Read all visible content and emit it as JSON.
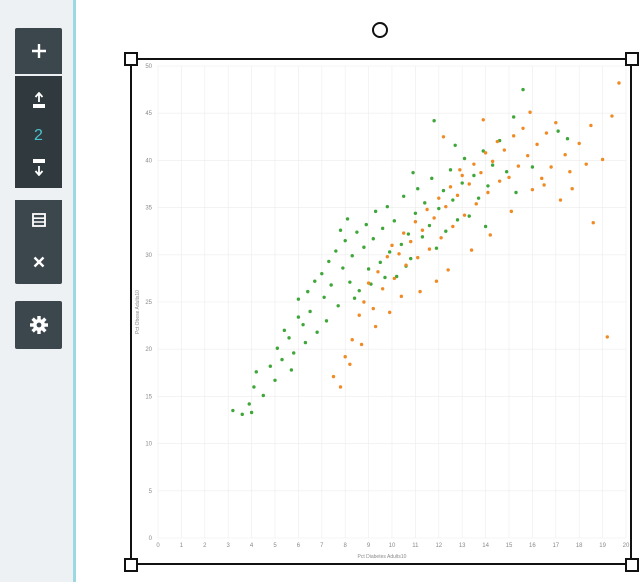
{
  "toolbar": {
    "add_icon": "plus-icon",
    "move_up_icon": "layer-up-icon",
    "layer_count": "2",
    "move_down_icon": "layer-down-icon",
    "stack_icon": "stack-icon",
    "remove_icon": "close-icon",
    "settings_icon": "gear-icon",
    "bg_color": "#3c474d",
    "count_color": "#4cc4cf"
  },
  "chart_data": {
    "type": "scatter",
    "xlabel": "Pct Diabetes Adults10",
    "ylabel": "Pct Obese Adults10",
    "xlim": [
      0,
      20
    ],
    "ylim": [
      0,
      50
    ],
    "xticks": [
      "0",
      "1",
      "2",
      "3",
      "4",
      "5",
      "6",
      "7",
      "8",
      "9",
      "10",
      "11",
      "12",
      "13",
      "14",
      "15",
      "16",
      "17",
      "18",
      "19",
      "20"
    ],
    "yticks": [
      "0",
      "5",
      "10",
      "15",
      "20",
      "25",
      "30",
      "35",
      "40",
      "45",
      "50"
    ],
    "grid": true,
    "series": [
      {
        "color": "#3fa63a",
        "points": [
          [
            3.2,
            13.5
          ],
          [
            3.6,
            13.1
          ],
          [
            4.0,
            13.3
          ],
          [
            3.9,
            14.2
          ],
          [
            4.1,
            16.0
          ],
          [
            4.2,
            17.6
          ],
          [
            4.5,
            15.1
          ],
          [
            4.8,
            18.2
          ],
          [
            5.0,
            16.7
          ],
          [
            5.1,
            20.1
          ],
          [
            5.3,
            18.9
          ],
          [
            5.4,
            22.0
          ],
          [
            5.6,
            21.2
          ],
          [
            5.8,
            19.6
          ],
          [
            6.0,
            23.4
          ],
          [
            6.0,
            25.3
          ],
          [
            6.2,
            22.6
          ],
          [
            6.4,
            26.1
          ],
          [
            6.5,
            24.0
          ],
          [
            6.7,
            27.2
          ],
          [
            6.8,
            21.8
          ],
          [
            7.0,
            28.0
          ],
          [
            7.1,
            25.5
          ],
          [
            7.3,
            29.3
          ],
          [
            7.4,
            26.8
          ],
          [
            7.6,
            30.4
          ],
          [
            7.7,
            24.6
          ],
          [
            7.9,
            28.6
          ],
          [
            8.0,
            31.5
          ],
          [
            8.2,
            27.1
          ],
          [
            8.3,
            29.9
          ],
          [
            8.5,
            32.4
          ],
          [
            8.6,
            26.2
          ],
          [
            8.8,
            30.8
          ],
          [
            8.9,
            33.2
          ],
          [
            9.0,
            28.5
          ],
          [
            9.2,
            31.7
          ],
          [
            9.3,
            34.6
          ],
          [
            9.5,
            29.2
          ],
          [
            9.6,
            32.8
          ],
          [
            9.8,
            35.1
          ],
          [
            9.9,
            30.3
          ],
          [
            10.1,
            33.6
          ],
          [
            10.2,
            27.7
          ],
          [
            10.4,
            31.1
          ],
          [
            10.5,
            36.2
          ],
          [
            10.7,
            32.2
          ],
          [
            10.8,
            29.6
          ],
          [
            11.0,
            34.4
          ],
          [
            11.1,
            37.0
          ],
          [
            11.3,
            31.9
          ],
          [
            11.4,
            35.5
          ],
          [
            11.6,
            33.1
          ],
          [
            11.7,
            38.1
          ],
          [
            11.9,
            30.7
          ],
          [
            12.0,
            34.9
          ],
          [
            12.2,
            36.8
          ],
          [
            12.3,
            32.5
          ],
          [
            12.5,
            39.0
          ],
          [
            12.6,
            35.8
          ],
          [
            12.8,
            33.7
          ],
          [
            13.0,
            37.6
          ],
          [
            13.1,
            40.2
          ],
          [
            13.3,
            34.1
          ],
          [
            13.5,
            38.4
          ],
          [
            13.7,
            36.0
          ],
          [
            13.9,
            41.0
          ],
          [
            14.1,
            37.3
          ],
          [
            14.3,
            39.5
          ],
          [
            14.6,
            42.1
          ],
          [
            14.9,
            38.8
          ],
          [
            15.2,
            44.6
          ],
          [
            15.6,
            47.5
          ],
          [
            11.8,
            44.2
          ],
          [
            17.1,
            43.1
          ],
          [
            17.5,
            42.3
          ],
          [
            8.4,
            25.4
          ],
          [
            9.1,
            26.9
          ],
          [
            7.2,
            23.0
          ],
          [
            6.3,
            20.7
          ],
          [
            5.7,
            17.8
          ],
          [
            10.6,
            28.8
          ],
          [
            9.7,
            27.6
          ],
          [
            8.1,
            33.8
          ],
          [
            7.8,
            32.6
          ],
          [
            10.9,
            38.7
          ],
          [
            12.7,
            41.6
          ],
          [
            16.0,
            39.3
          ],
          [
            15.3,
            36.6
          ],
          [
            14.0,
            33.0
          ]
        ]
      },
      {
        "color": "#f08a24",
        "points": [
          [
            7.5,
            17.1
          ],
          [
            7.8,
            16.0
          ],
          [
            8.0,
            19.2
          ],
          [
            8.3,
            21.0
          ],
          [
            8.6,
            23.6
          ],
          [
            8.8,
            25.0
          ],
          [
            9.0,
            27.0
          ],
          [
            9.2,
            24.3
          ],
          [
            9.4,
            28.2
          ],
          [
            9.6,
            26.4
          ],
          [
            9.8,
            29.8
          ],
          [
            10.0,
            31.0
          ],
          [
            10.1,
            27.5
          ],
          [
            10.3,
            30.1
          ],
          [
            10.5,
            32.3
          ],
          [
            10.6,
            28.9
          ],
          [
            10.8,
            31.4
          ],
          [
            11.0,
            33.5
          ],
          [
            11.1,
            29.7
          ],
          [
            11.3,
            32.6
          ],
          [
            11.5,
            34.8
          ],
          [
            11.6,
            30.6
          ],
          [
            11.8,
            33.9
          ],
          [
            12.0,
            36.0
          ],
          [
            12.1,
            31.8
          ],
          [
            12.3,
            35.1
          ],
          [
            12.5,
            37.2
          ],
          [
            12.6,
            33.0
          ],
          [
            12.8,
            36.3
          ],
          [
            13.0,
            38.4
          ],
          [
            13.1,
            34.2
          ],
          [
            13.3,
            37.5
          ],
          [
            13.5,
            39.6
          ],
          [
            13.6,
            35.4
          ],
          [
            13.8,
            38.7
          ],
          [
            14.0,
            40.8
          ],
          [
            14.1,
            36.6
          ],
          [
            14.3,
            39.9
          ],
          [
            14.5,
            42.0
          ],
          [
            14.6,
            37.8
          ],
          [
            14.8,
            41.1
          ],
          [
            15.0,
            38.2
          ],
          [
            15.2,
            42.6
          ],
          [
            15.4,
            39.4
          ],
          [
            15.6,
            43.4
          ],
          [
            15.8,
            40.5
          ],
          [
            16.0,
            36.9
          ],
          [
            16.2,
            41.7
          ],
          [
            16.4,
            38.1
          ],
          [
            16.6,
            42.9
          ],
          [
            16.8,
            39.3
          ],
          [
            17.0,
            44.0
          ],
          [
            17.2,
            35.8
          ],
          [
            17.4,
            40.6
          ],
          [
            17.7,
            37.0
          ],
          [
            18.0,
            41.8
          ],
          [
            18.3,
            39.6
          ],
          [
            18.6,
            33.4
          ],
          [
            19.0,
            40.1
          ],
          [
            19.4,
            44.7
          ],
          [
            19.7,
            48.2
          ],
          [
            19.2,
            21.3
          ],
          [
            12.9,
            39.0
          ],
          [
            12.4,
            28.4
          ],
          [
            11.9,
            27.2
          ],
          [
            11.2,
            26.1
          ],
          [
            10.4,
            25.6
          ],
          [
            9.9,
            23.9
          ],
          [
            9.3,
            22.4
          ],
          [
            8.7,
            20.5
          ],
          [
            8.2,
            18.4
          ],
          [
            13.4,
            30.5
          ],
          [
            14.2,
            32.1
          ],
          [
            15.1,
            34.6
          ],
          [
            16.5,
            37.4
          ],
          [
            17.6,
            38.8
          ],
          [
            18.5,
            43.7
          ],
          [
            13.9,
            44.3
          ],
          [
            15.9,
            45.1
          ],
          [
            12.2,
            42.5
          ]
        ]
      }
    ]
  }
}
